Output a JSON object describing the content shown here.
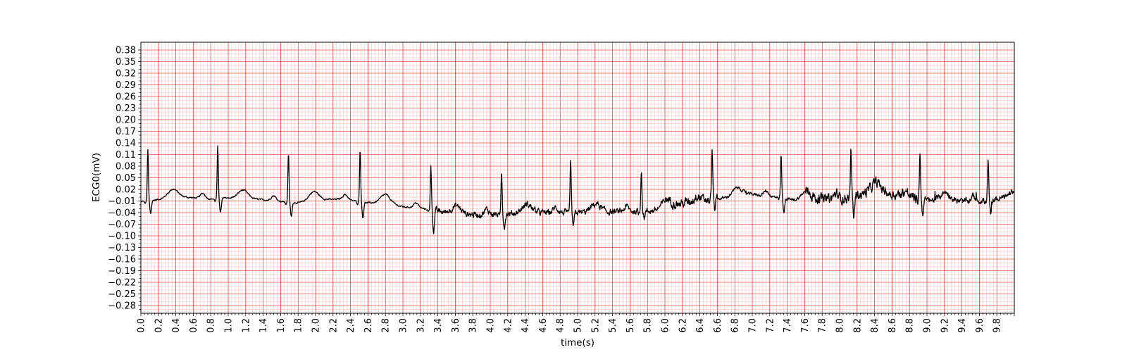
{
  "chart_data": {
    "type": "line",
    "title": "",
    "xlabel": "time(s)",
    "ylabel": "ECG0(mV)",
    "xlim": [
      0.0,
      10.0
    ],
    "ylim": [
      -0.3,
      0.4
    ],
    "x_major_ticks": [
      "0.0",
      "0.2",
      "0.4",
      "0.6",
      "0.8",
      "1.0",
      "1.2",
      "1.4",
      "1.6",
      "1.8",
      "2.0",
      "2.2",
      "2.4",
      "2.6",
      "2.8",
      "3.0",
      "3.2",
      "3.4",
      "3.6",
      "3.8",
      "4.0",
      "4.2",
      "4.4",
      "4.6",
      "4.8",
      "5.0",
      "5.2",
      "5.4",
      "5.6",
      "5.8",
      "6.0",
      "6.2",
      "6.4",
      "6.6",
      "6.8",
      "7.0",
      "7.2",
      "7.4",
      "7.6",
      "7.8",
      "8.0",
      "8.2",
      "8.4",
      "8.6",
      "8.8",
      "9.0",
      "9.2",
      "9.4",
      "9.6",
      "9.8"
    ],
    "y_major_ticks": [
      "0.38",
      "0.35",
      "0.32",
      "0.29",
      "0.26",
      "0.23",
      "0.20",
      "0.17",
      "0.14",
      "0.11",
      "0.08",
      "0.05",
      "0.02",
      "−0.01",
      "−0.04",
      "−0.07",
      "−0.10",
      "−0.13",
      "−0.16",
      "−0.19",
      "−0.22",
      "−0.25",
      "−0.28"
    ],
    "grid": "ecg-paper",
    "colors": {
      "line": "#000000",
      "major_grid": "#ff0000",
      "minor_grid": "#ff9999",
      "background": "#ffffff"
    },
    "series": [
      {
        "values": {
          "r_peak_times": [
            0.08,
            0.88,
            1.69,
            2.51,
            3.32,
            4.13,
            4.92,
            5.73,
            6.54,
            7.33,
            8.13,
            8.92,
            9.7
          ],
          "r_peak_amplitudes": [
            0.122,
            0.13,
            0.112,
            0.122,
            0.083,
            0.067,
            0.092,
            0.072,
            0.126,
            0.108,
            0.12,
            0.115,
            0.09
          ],
          "s_trough_amplitudes": [
            -0.043,
            -0.04,
            -0.05,
            -0.052,
            -0.085,
            -0.078,
            -0.077,
            -0.052,
            -0.03,
            -0.04,
            -0.052,
            -0.04,
            -0.047
          ],
          "baseline_points": [
            [
              0.0,
              -0.012
            ],
            [
              0.05,
              -0.01
            ],
            [
              0.1,
              -0.01
            ],
            [
              0.3,
              -0.002
            ],
            [
              0.5,
              0.0
            ],
            [
              0.8,
              -0.005
            ],
            [
              1.0,
              -0.002
            ],
            [
              1.3,
              -0.005
            ],
            [
              1.5,
              -0.009
            ],
            [
              1.8,
              -0.015
            ],
            [
              2.0,
              -0.007
            ],
            [
              2.3,
              -0.005
            ],
            [
              2.6,
              -0.015
            ],
            [
              2.8,
              -0.015
            ],
            [
              3.0,
              -0.025
            ],
            [
              3.25,
              -0.03
            ],
            [
              3.6,
              -0.045
            ],
            [
              4.0,
              -0.045
            ],
            [
              4.5,
              -0.04
            ],
            [
              5.0,
              -0.04
            ],
            [
              5.5,
              -0.038
            ],
            [
              5.9,
              -0.035
            ],
            [
              6.3,
              -0.01
            ],
            [
              6.6,
              -0.005
            ],
            [
              7.0,
              0.008
            ],
            [
              7.5,
              -0.008
            ],
            [
              7.8,
              -0.005
            ],
            [
              8.0,
              -0.005
            ],
            [
              8.4,
              0.015
            ],
            [
              8.7,
              0.005
            ],
            [
              9.0,
              -0.008
            ],
            [
              9.5,
              -0.012
            ],
            [
              9.9,
              -0.003
            ],
            [
              10.0,
              -0.008
            ]
          ]
        }
      }
    ]
  }
}
